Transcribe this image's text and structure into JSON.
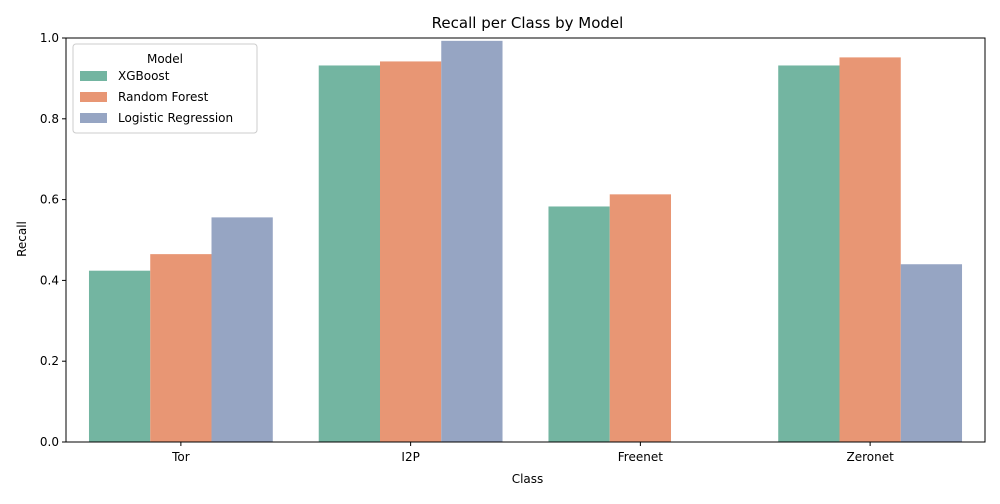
{
  "chart_data": {
    "type": "bar",
    "title": "Recall per Class by Model",
    "xlabel": "Class",
    "ylabel": "Recall",
    "ylim": [
      0,
      1.0
    ],
    "yticks": [
      "0.0",
      "0.2",
      "0.4",
      "0.6",
      "0.8",
      "1.0"
    ],
    "categories": [
      "Tor",
      "I2P",
      "Freenet",
      "Zeronet"
    ],
    "series": [
      {
        "name": "XGBoost",
        "color": "#73b5a1",
        "values": [
          0.424,
          0.932,
          0.583,
          0.932
        ]
      },
      {
        "name": "Random Forest",
        "color": "#e89674",
        "values": [
          0.465,
          0.942,
          0.613,
          0.952
        ]
      },
      {
        "name": "Logistic Regression",
        "color": "#96a5c3",
        "values": [
          0.556,
          0.993,
          0.0,
          0.44
        ]
      }
    ],
    "legend": {
      "title": "Model",
      "position": "top-left"
    },
    "grid": false
  }
}
